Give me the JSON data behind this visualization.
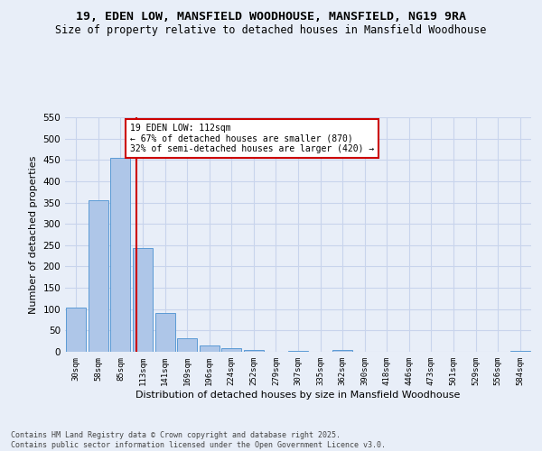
{
  "title": "19, EDEN LOW, MANSFIELD WOODHOUSE, MANSFIELD, NG19 9RA",
  "subtitle": "Size of property relative to detached houses in Mansfield Woodhouse",
  "xlabel": "Distribution of detached houses by size in Mansfield Woodhouse",
  "ylabel": "Number of detached properties",
  "footer_line1": "Contains HM Land Registry data © Crown copyright and database right 2025.",
  "footer_line2": "Contains public sector information licensed under the Open Government Licence v3.0.",
  "bar_labels": [
    "30sqm",
    "58sqm",
    "85sqm",
    "113sqm",
    "141sqm",
    "169sqm",
    "196sqm",
    "224sqm",
    "252sqm",
    "279sqm",
    "307sqm",
    "335sqm",
    "362sqm",
    "390sqm",
    "418sqm",
    "446sqm",
    "473sqm",
    "501sqm",
    "529sqm",
    "556sqm",
    "584sqm"
  ],
  "bar_values": [
    104,
    355,
    455,
    244,
    90,
    32,
    14,
    9,
    5,
    0,
    3,
    0,
    5,
    0,
    0,
    0,
    0,
    0,
    0,
    0,
    3
  ],
  "bar_color": "#aec6e8",
  "bar_edge_color": "#5b9bd5",
  "ylim": [
    0,
    550
  ],
  "yticks": [
    0,
    50,
    100,
    150,
    200,
    250,
    300,
    350,
    400,
    450,
    500,
    550
  ],
  "property_line_x": 2.72,
  "annotation_text": "19 EDEN LOW: 112sqm\n← 67% of detached houses are smaller (870)\n32% of semi-detached houses are larger (420) →",
  "annotation_box_color": "#ffffff",
  "annotation_box_edge": "#cc0000",
  "vline_color": "#cc0000",
  "bg_color": "#e8eef8",
  "grid_color": "#c8d4ec",
  "title_fontsize": 9.5,
  "subtitle_fontsize": 8.5
}
